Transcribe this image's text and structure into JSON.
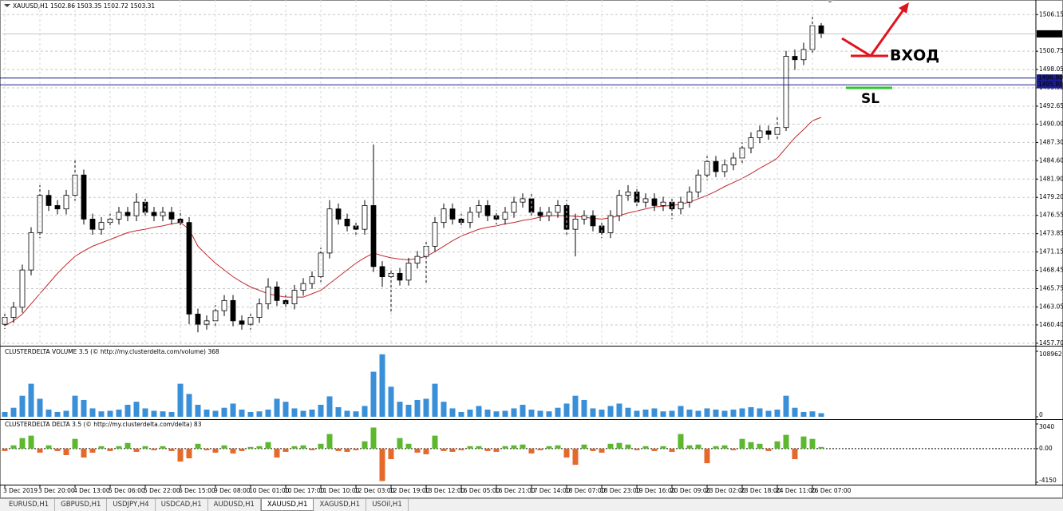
{
  "chart_data": [
    {
      "type": "candlestick",
      "title": "XAUUSD,H1  1502.86 1503.35 1502.72 1503.31",
      "categories": [
        "3 Dec 2019",
        null,
        null,
        null,
        "3 Dec 20:00",
        null,
        null,
        null,
        "4 Dec 13:00",
        null,
        null,
        null,
        "5 Dec 06:00",
        null,
        null,
        null,
        "5 Dec 22:00",
        null,
        null,
        null,
        "6 Dec 15:00",
        null,
        null,
        null,
        "9 Dec 08:00",
        null,
        null,
        null,
        "10 Dec 01:00",
        null,
        null,
        null,
        "10 Dec 17:00",
        null,
        null,
        null,
        "11 Dec 10:00",
        null,
        null,
        null,
        "12 Dec 03:00",
        null,
        null,
        null,
        "12 Dec 19:00",
        null,
        null,
        null,
        "13 Dec 12:00",
        null,
        null,
        null,
        "16 Dec 05:00",
        null,
        null,
        null,
        "16 Dec 21:00",
        null,
        null,
        null,
        "17 Dec 14:00",
        null,
        null,
        null,
        "18 Dec 07:00",
        null,
        null,
        null,
        "18 Dec 23:00",
        null,
        null,
        null,
        "19 Dec 16:00",
        null,
        null,
        null,
        "20 Dec 09:00",
        null,
        null,
        null,
        "23 Dec 02:00",
        null,
        null,
        null,
        "23 Dec 18:00",
        null,
        null,
        null,
        "24 Dec 11:00",
        null,
        null,
        null,
        "26 Dec 07:00",
        null
      ],
      "open": [
        1460.5,
        1461.5,
        1463.0,
        1468.5,
        1474.0,
        1479.5,
        1478.0,
        1477.5,
        1479.5,
        1482.5,
        1476.0,
        1474.5,
        1475.5,
        1476.0,
        1477.0,
        1476.5,
        1478.5,
        1477.0,
        1476.5,
        1477.0,
        1476.0,
        1475.5,
        1462.0,
        1460.5,
        1461.0,
        1462.5,
        1464.0,
        1461.0,
        1460.5,
        1461.5,
        1463.5,
        1466.0,
        1464.0,
        1463.5,
        1465.5,
        1466.5,
        1467.5,
        1471.0,
        1477.5,
        1476.0,
        1475.0,
        1474.5,
        1478.0,
        1469.0,
        1467.5,
        1468.0,
        1467.0,
        1469.5,
        1470.5,
        1472.0,
        1475.5,
        1477.5,
        1476.0,
        1475.5,
        1477.0,
        1478.0,
        1476.5,
        1476.0,
        1477.0,
        1478.5,
        1479.0,
        1477.0,
        1476.5,
        1477.0,
        1478.0,
        1474.5,
        1476.0,
        1476.5,
        1475.0,
        1474.0,
        1476.5,
        1479.5,
        1480.0,
        1478.5,
        1479.0,
        1478.0,
        1478.5,
        1477.5,
        1478.5,
        1480.0,
        1482.5,
        1484.5,
        1483.0,
        1484.0,
        1485.0,
        1486.5,
        1488.0,
        1489.0,
        1488.5,
        1489.5,
        1500.0,
        1499.5,
        1501.0,
        1504.5
      ],
      "high": [
        1462.3,
        1463.8,
        1469.3,
        1474.8,
        1481.0,
        1480.3,
        1478.8,
        1480.3,
        1484.7,
        1483.3,
        1476.8,
        1476.3,
        1476.8,
        1477.8,
        1477.8,
        1479.8,
        1479.3,
        1477.8,
        1477.8,
        1477.8,
        1477.3,
        1476.3,
        1462.8,
        1461.8,
        1463.3,
        1464.8,
        1464.8,
        1461.8,
        1462.3,
        1464.3,
        1467.3,
        1466.8,
        1464.8,
        1466.3,
        1467.3,
        1468.3,
        1471.8,
        1478.8,
        1478.3,
        1476.8,
        1475.8,
        1478.8,
        1487.0,
        1469.8,
        1468.8,
        1468.8,
        1470.3,
        1471.3,
        1472.8,
        1476.3,
        1478.3,
        1478.3,
        1476.8,
        1477.8,
        1478.8,
        1478.8,
        1477.3,
        1477.8,
        1479.3,
        1479.8,
        1479.8,
        1477.8,
        1477.8,
        1478.8,
        1478.8,
        1476.8,
        1477.3,
        1477.3,
        1475.8,
        1477.3,
        1480.3,
        1481.0,
        1480.8,
        1479.8,
        1479.8,
        1479.3,
        1479.3,
        1479.3,
        1480.8,
        1483.3,
        1485.3,
        1485.3,
        1484.8,
        1485.8,
        1487.3,
        1488.8,
        1489.8,
        1489.8,
        1491.0,
        1500.8,
        1501.0,
        1502.0,
        1505.8,
        1504.9
      ],
      "low": [
        1459.8,
        1460.7,
        1462.2,
        1467.7,
        1473.2,
        1477.2,
        1476.7,
        1476.7,
        1478.7,
        1475.2,
        1473.7,
        1473.7,
        1474.7,
        1475.2,
        1475.7,
        1475.7,
        1476.2,
        1475.7,
        1475.7,
        1475.2,
        1474.7,
        1460.5,
        1459.3,
        1459.7,
        1460.2,
        1461.7,
        1460.2,
        1459.7,
        1459.7,
        1460.7,
        1462.7,
        1463.2,
        1462.7,
        1462.7,
        1464.7,
        1465.7,
        1466.7,
        1470.2,
        1475.2,
        1474.2,
        1473.7,
        1473.7,
        1468.2,
        1466.0,
        1462.0,
        1466.2,
        1466.2,
        1468.7,
        1466.5,
        1471.2,
        1474.7,
        1475.2,
        1474.7,
        1474.7,
        1476.2,
        1475.7,
        1475.2,
        1475.2,
        1476.2,
        1477.7,
        1476.2,
        1475.7,
        1475.7,
        1476.2,
        1473.7,
        1470.5,
        1475.2,
        1474.2,
        1473.2,
        1473.2,
        1475.7,
        1478.7,
        1477.7,
        1477.7,
        1477.2,
        1477.2,
        1476.0,
        1476.7,
        1477.7,
        1479.2,
        1481.7,
        1482.2,
        1482.2,
        1483.2,
        1484.2,
        1485.7,
        1487.2,
        1487.7,
        1487.7,
        1489.0,
        1498.0,
        1498.7,
        1500.2,
        1502.7
      ],
      "close": [
        1461.5,
        1463.0,
        1468.5,
        1474.0,
        1479.5,
        1478.0,
        1477.5,
        1479.5,
        1482.5,
        1476.0,
        1474.5,
        1475.5,
        1476.0,
        1477.0,
        1476.5,
        1478.5,
        1477.0,
        1476.5,
        1477.0,
        1476.0,
        1475.5,
        1462.0,
        1460.5,
        1461.0,
        1462.5,
        1464.0,
        1461.0,
        1460.5,
        1461.5,
        1463.5,
        1466.0,
        1464.0,
        1463.5,
        1465.5,
        1466.5,
        1467.5,
        1471.0,
        1477.5,
        1476.0,
        1475.0,
        1474.5,
        1478.0,
        1469.0,
        1467.5,
        1468.0,
        1467.0,
        1469.5,
        1470.5,
        1472.0,
        1475.5,
        1477.5,
        1476.0,
        1475.5,
        1477.0,
        1478.0,
        1476.5,
        1476.0,
        1477.0,
        1478.5,
        1479.0,
        1477.0,
        1476.5,
        1477.0,
        1478.0,
        1474.5,
        1476.0,
        1476.5,
        1475.0,
        1474.0,
        1476.5,
        1479.5,
        1480.0,
        1478.5,
        1479.0,
        1478.0,
        1478.5,
        1477.5,
        1478.5,
        1480.0,
        1482.5,
        1484.5,
        1483.0,
        1484.0,
        1485.0,
        1486.5,
        1488.0,
        1489.0,
        1488.5,
        1489.5,
        1500.0,
        1499.5,
        1501.0,
        1504.5,
        1503.31
      ],
      "up_color": "#ffffff",
      "down_color": "#000000",
      "line_color": "#000000",
      "series": [
        {
          "color": "#c0282d",
          "values": [
            1460.3,
            1461.0,
            1462.0,
            1463.5,
            1465.0,
            1466.5,
            1468.0,
            1469.3,
            1470.5,
            1471.3,
            1472.0,
            1472.5,
            1473.0,
            1473.5,
            1474.0,
            1474.3,
            1474.5,
            1474.8,
            1475.0,
            1475.3,
            1475.5,
            1474.5,
            1472.0,
            1470.7,
            1469.5,
            1468.5,
            1467.5,
            1466.7,
            1466.0,
            1465.5,
            1465.0,
            1464.7,
            1464.5,
            1464.5,
            1464.5,
            1465.0,
            1465.5,
            1466.5,
            1467.5,
            1468.5,
            1469.5,
            1470.3,
            1471.0,
            1470.6,
            1470.3,
            1470.1,
            1470.0,
            1470.2,
            1470.5,
            1471.2,
            1472.0,
            1472.8,
            1473.5,
            1474.0,
            1474.5,
            1474.8,
            1475.0,
            1475.3,
            1475.5,
            1475.8,
            1476.0,
            1476.3,
            1476.5,
            1476.5,
            1476.5,
            1476.4,
            1476.3,
            1476.1,
            1476.0,
            1476.2,
            1476.5,
            1476.9,
            1477.2,
            1477.5,
            1477.8,
            1477.9,
            1478.0,
            1478.2,
            1478.5,
            1479.0,
            1479.5,
            1480.1,
            1480.8,
            1481.4,
            1482.0,
            1482.7,
            1483.5,
            1484.2,
            1485.0,
            1486.5,
            1488.0,
            1489.2,
            1490.5,
            1491.0
          ]
        }
      ],
      "ylim": [
        1457.45,
        1508.3
      ],
      "yticks": [
        1506.15,
        1500.75,
        1498.05,
        1495.35,
        1492.65,
        {
          "value": 1490,
          "label": "1490.00"
        },
        {
          "value": 1487.3,
          "label": "1487.30"
        },
        {
          "value": 1484.6,
          "label": "1484.60"
        },
        {
          "value": 1481.9,
          "label": "1481.90"
        },
        {
          "value": 1479.2,
          "label": "1479.20"
        },
        1476.55,
        1473.85,
        1471.15,
        1468.45,
        1465.75,
        1463.05,
        {
          "value": 1460.4,
          "label": "1460.40"
        },
        {
          "value": 1457.7,
          "label": "1457.70"
        }
      ],
      "grid": true,
      "hlines": [
        {
          "value": 1496.8,
          "label": "1496.80",
          "color": "#1c1c8c"
        },
        {
          "value": 1495.8,
          "label": "1495.80",
          "color": "#1c1c8c"
        }
      ],
      "last_price": 1503.31,
      "annotations": [
        {
          "text": "ВХОД",
          "color": "#e0141e"
        },
        {
          "text": "SL",
          "color": "#2cc52c"
        }
      ]
    },
    {
      "type": "bar",
      "title": "CLUSTERDELTA VOLUME 3.5 (© http://my.clusterdelta.com/volume) 368",
      "values": [
        8000,
        15000,
        35000,
        55000,
        30000,
        12000,
        8000,
        10000,
        35000,
        28000,
        14000,
        9000,
        10000,
        12000,
        20000,
        25000,
        14000,
        10000,
        9000,
        8000,
        55000,
        38000,
        20000,
        12000,
        10000,
        15000,
        22000,
        12000,
        8000,
        9000,
        12000,
        30000,
        25000,
        14000,
        10000,
        12000,
        20000,
        34000,
        16000,
        10000,
        9000,
        18000,
        75000,
        104000,
        50000,
        25000,
        20000,
        28000,
        30000,
        55000,
        25000,
        14000,
        8000,
        12000,
        18000,
        12000,
        9000,
        10000,
        14000,
        20000,
        12000,
        10000,
        9000,
        15000,
        22000,
        35000,
        28000,
        14000,
        12000,
        18000,
        22000,
        15000,
        10000,
        12000,
        14000,
        9000,
        10000,
        18000,
        12000,
        10000,
        14000,
        12000,
        10000,
        12000,
        14000,
        16000,
        14000,
        10000,
        12000,
        35000,
        15000,
        8000,
        9000,
        6000
      ],
      "up_color": "#3a8fd9",
      "down_color": "#3a8fd9",
      "ylim": [
        0,
        108962
      ],
      "yticks": [
        108962,
        0
      ]
    },
    {
      "type": "bar",
      "title": "CLUSTERDELTA DELTA 3.5 (© http://my.clusterdelta.com/delta) 83",
      "values": [
        -300,
        400,
        1300,
        1600,
        -500,
        400,
        -300,
        -800,
        1200,
        -1100,
        -500,
        300,
        -300,
        300,
        700,
        -400,
        300,
        -200,
        300,
        -300,
        -1600,
        -1200,
        600,
        -200,
        -500,
        400,
        -600,
        -300,
        200,
        300,
        800,
        -1100,
        -400,
        300,
        400,
        -200,
        600,
        1800,
        -300,
        -400,
        -200,
        900,
        2600,
        -4000,
        -1300,
        1300,
        600,
        -500,
        -700,
        1600,
        -300,
        -400,
        -200,
        300,
        300,
        -300,
        -400,
        300,
        400,
        500,
        -600,
        -200,
        300,
        400,
        -1100,
        -2000,
        500,
        -300,
        -500,
        600,
        700,
        500,
        -200,
        300,
        -300,
        300,
        -400,
        1800,
        400,
        500,
        -1800,
        300,
        400,
        -200,
        1200,
        800,
        600,
        -300,
        900,
        1700,
        -1300,
        1500,
        1200,
        200
      ],
      "up_color": "#5cb82e",
      "down_color": "#e5692a",
      "ylim": [
        -4150,
        3040
      ],
      "yticks": [
        3040,
        {
          "value": 0,
          "label": "0.00"
        },
        -4150
      ]
    }
  ],
  "tabs": [
    "EURUSD,H1",
    "GBPUSD,H1",
    "USDJPY,H4",
    "USDCAD,H1",
    "AUDUSD,H1",
    "XAUUSD,H1",
    "XAGUSD,H1",
    "USOil,H1"
  ]
}
